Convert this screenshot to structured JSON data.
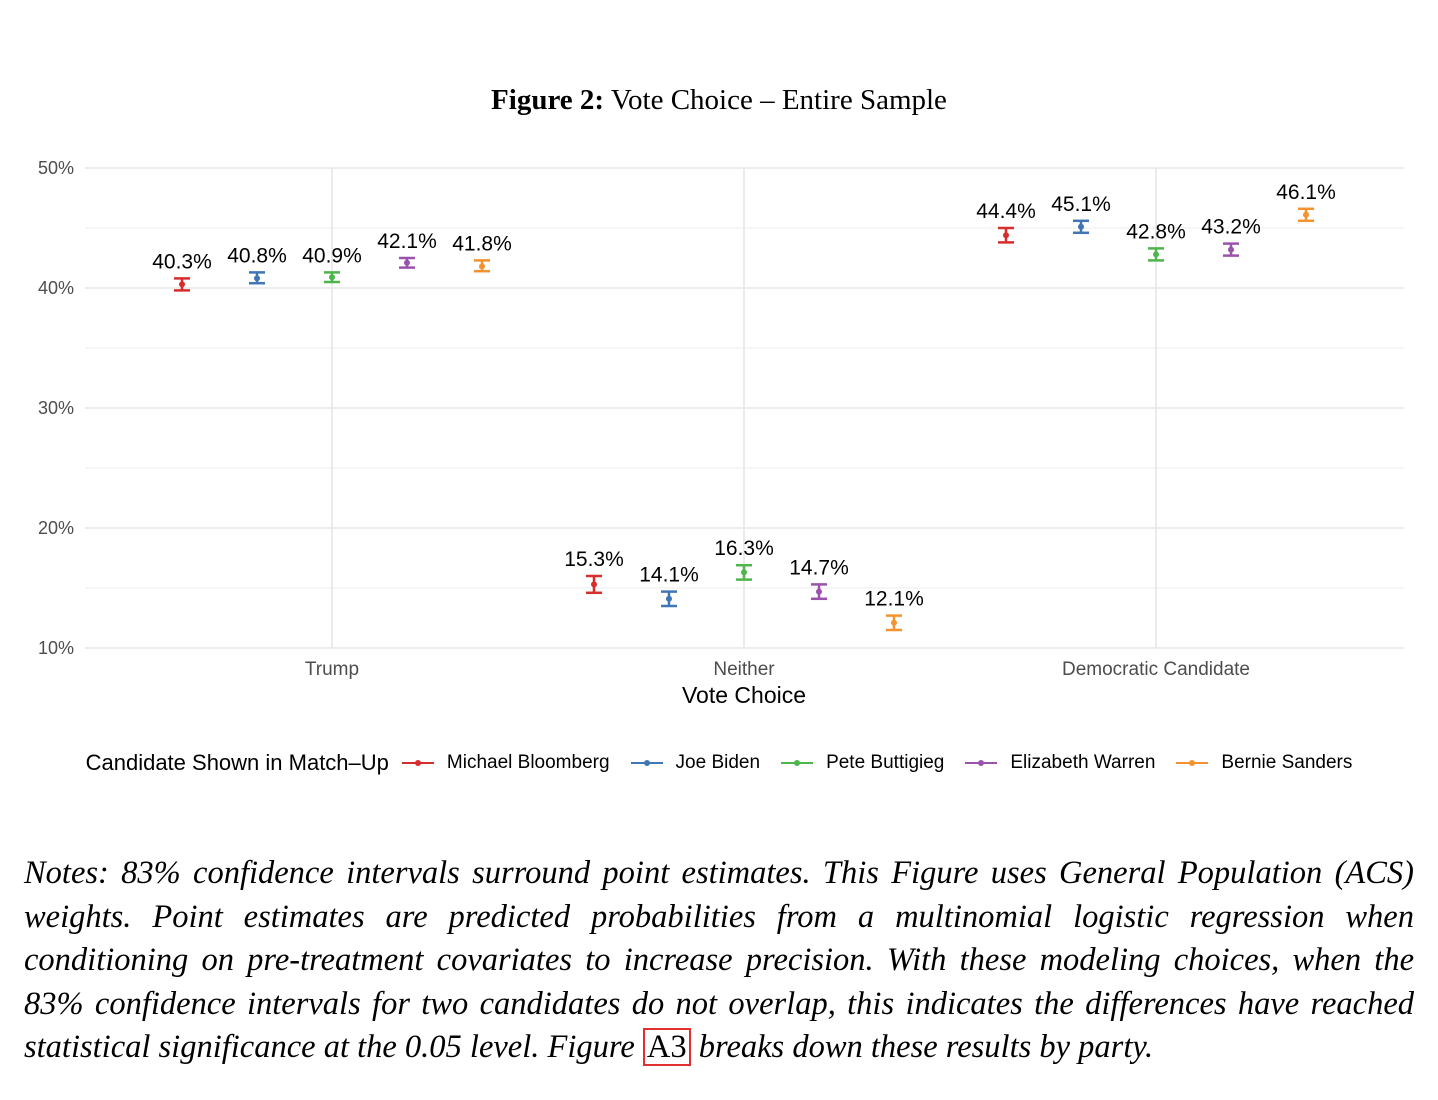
{
  "figure": {
    "label": "Figure 2:",
    "title": "Vote Choice – Entire Sample"
  },
  "chart_data": {
    "type": "scatter",
    "title": "Figure 2: Vote Choice – Entire Sample",
    "xlabel": "Vote Choice",
    "ylabel": "",
    "categories": [
      "Trump",
      "Neither",
      "Democratic Candidate"
    ],
    "ylim": [
      10,
      50
    ],
    "yticks": [
      10,
      20,
      30,
      40,
      50
    ],
    "ytick_labels": [
      "10%",
      "20%",
      "30%",
      "40%",
      "50%"
    ],
    "grid": true,
    "legend_title": "Candidate Shown in Match–Up",
    "legend_position": "bottom",
    "series": [
      {
        "name": "Michael Bloomberg",
        "color": "#d62d2d",
        "values": [
          40.3,
          15.3,
          44.4
        ],
        "labels": [
          "40.3%",
          "15.3%",
          "44.4%"
        ],
        "ci_low": [
          39.8,
          14.6,
          43.8
        ],
        "ci_high": [
          40.8,
          16.0,
          45.0
        ]
      },
      {
        "name": "Joe Biden",
        "color": "#3f76b3",
        "values": [
          40.8,
          14.1,
          45.1
        ],
        "labels": [
          "40.8%",
          "14.1%",
          "45.1%"
        ],
        "ci_low": [
          40.4,
          13.5,
          44.6
        ],
        "ci_high": [
          41.3,
          14.7,
          45.6
        ]
      },
      {
        "name": "Pete Buttigieg",
        "color": "#4db54a",
        "values": [
          40.9,
          16.3,
          42.8
        ],
        "labels": [
          "40.9%",
          "16.3%",
          "42.8%"
        ],
        "ci_low": [
          40.5,
          15.7,
          42.3
        ],
        "ci_high": [
          41.3,
          16.9,
          43.3
        ]
      },
      {
        "name": "Elizabeth Warren",
        "color": "#9b52ad",
        "values": [
          42.1,
          14.7,
          43.2
        ],
        "labels": [
          "42.1%",
          "14.7%",
          "43.2%"
        ],
        "ci_low": [
          41.7,
          14.1,
          42.7
        ],
        "ci_high": [
          42.5,
          15.3,
          43.7
        ]
      },
      {
        "name": "Bernie Sanders",
        "color": "#f3922f",
        "values": [
          41.8,
          12.1,
          46.1
        ],
        "labels": [
          "41.8%",
          "12.1%",
          "46.1%"
        ],
        "ci_low": [
          41.4,
          11.5,
          45.6
        ],
        "ci_high": [
          42.3,
          12.7,
          46.6
        ]
      }
    ]
  },
  "notes": {
    "text_before": "Notes: 83% confidence intervals surround point estimates. This Figure uses General Population (ACS) weights. Point estimates are predicted probabilities from a multinomial logistic regression when conditioning on pre-treatment covariates to increase precision. With these modeling choices, when the 83% confidence intervals for two candidates do not overlap, this indicates the differences have reached statistical significance at the 0.05 level. Figure ",
    "ref": "A3",
    "text_after": " breaks down these results by party."
  }
}
